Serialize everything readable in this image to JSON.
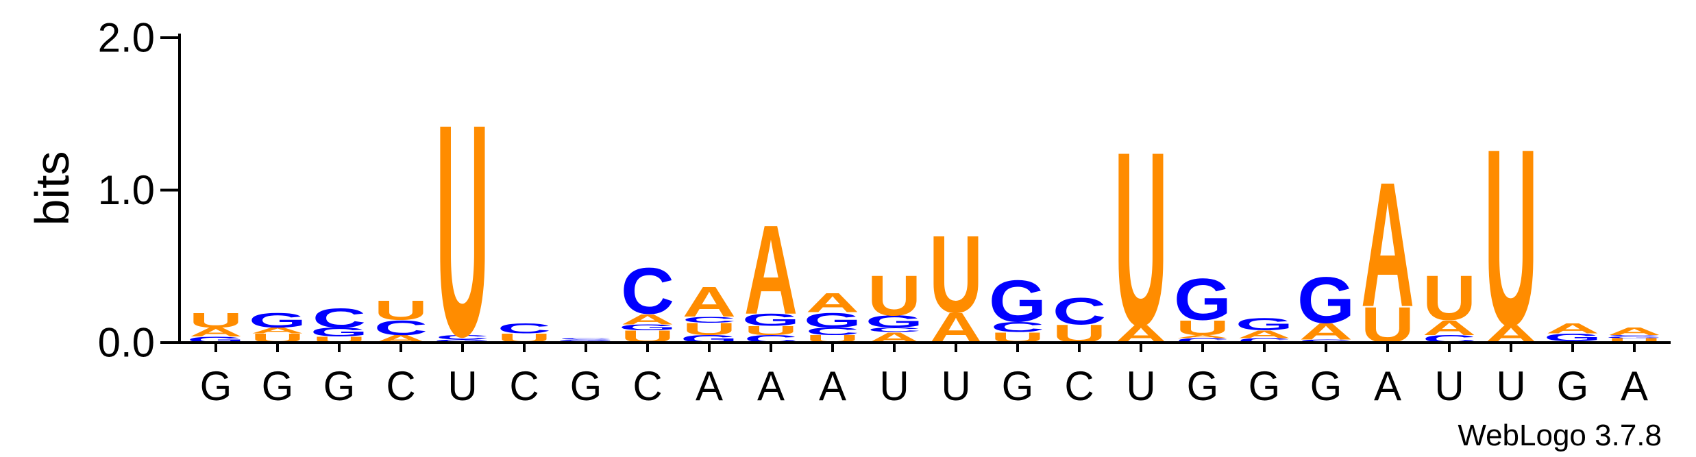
{
  "chart_data": {
    "type": "sequence-logo",
    "ylabel": "bits",
    "ylim": [
      0,
      2.0
    ],
    "yticks": [
      {
        "value": 0.0,
        "label": "0.0"
      },
      {
        "value": 1.0,
        "label": "1.0"
      },
      {
        "value": 2.0,
        "label": "2.0"
      }
    ],
    "credit": "WebLogo 3.7.8",
    "colors": {
      "A": "#ff8c00",
      "U": "#ff8c00",
      "C": "#0000ff",
      "G": "#0000ff"
    },
    "positions": [
      {
        "label": "G",
        "stack": [
          {
            "l": "G",
            "h": 0.04
          },
          {
            "l": "A",
            "h": 0.06
          },
          {
            "l": "U",
            "h": 0.1
          }
        ]
      },
      {
        "label": "G",
        "stack": [
          {
            "l": "U",
            "h": 0.06
          },
          {
            "l": "A",
            "h": 0.04
          },
          {
            "l": "G",
            "h": 0.1
          }
        ]
      },
      {
        "label": "G",
        "stack": [
          {
            "l": "U",
            "h": 0.04
          },
          {
            "l": "G",
            "h": 0.06
          },
          {
            "l": "C",
            "h": 0.13
          }
        ]
      },
      {
        "label": "C",
        "stack": [
          {
            "l": "A",
            "h": 0.05
          },
          {
            "l": "C",
            "h": 0.1
          },
          {
            "l": "U",
            "h": 0.13
          }
        ]
      },
      {
        "label": "U",
        "stack": [
          {
            "l": "G",
            "h": 0.02
          },
          {
            "l": "C",
            "h": 0.03
          },
          {
            "l": "U",
            "h": 1.43
          }
        ]
      },
      {
        "label": "C",
        "stack": [
          {
            "l": "U",
            "h": 0.06
          },
          {
            "l": "C",
            "h": 0.07
          }
        ]
      },
      {
        "label": "G",
        "stack": [
          {
            "l": "A",
            "h": 0.01
          },
          {
            "l": "G",
            "h": 0.01
          },
          {
            "l": "C",
            "h": 0.01
          }
        ]
      },
      {
        "label": "C",
        "stack": [
          {
            "l": "U",
            "h": 0.08
          },
          {
            "l": "G",
            "h": 0.04
          },
          {
            "l": "A",
            "h": 0.07
          },
          {
            "l": "C",
            "h": 0.31
          }
        ]
      },
      {
        "label": "A",
        "stack": [
          {
            "l": "G",
            "h": 0.05
          },
          {
            "l": "U",
            "h": 0.08
          },
          {
            "l": "C",
            "h": 0.04
          },
          {
            "l": "A",
            "h": 0.2
          }
        ]
      },
      {
        "label": "A",
        "stack": [
          {
            "l": "C",
            "h": 0.05
          },
          {
            "l": "U",
            "h": 0.06
          },
          {
            "l": "G",
            "h": 0.08
          },
          {
            "l": "A",
            "h": 0.6
          }
        ]
      },
      {
        "label": "A",
        "stack": [
          {
            "l": "U",
            "h": 0.05
          },
          {
            "l": "C",
            "h": 0.05
          },
          {
            "l": "G",
            "h": 0.1
          },
          {
            "l": "A",
            "h": 0.13
          }
        ]
      },
      {
        "label": "U",
        "stack": [
          {
            "l": "A",
            "h": 0.07
          },
          {
            "l": "C",
            "h": 0.03
          },
          {
            "l": "G",
            "h": 0.08
          },
          {
            "l": "U",
            "h": 0.27
          }
        ]
      },
      {
        "label": "U",
        "stack": [
          {
            "l": "A",
            "h": 0.2
          },
          {
            "l": "U",
            "h": 0.52
          }
        ]
      },
      {
        "label": "G",
        "stack": [
          {
            "l": "U",
            "h": 0.07
          },
          {
            "l": "C",
            "h": 0.07
          },
          {
            "l": "G",
            "h": 0.28
          }
        ]
      },
      {
        "label": "C",
        "stack": [
          {
            "l": "U",
            "h": 0.12
          },
          {
            "l": "C",
            "h": 0.18
          }
        ]
      },
      {
        "label": "U",
        "stack": [
          {
            "l": "A",
            "h": 0.12
          },
          {
            "l": "U",
            "h": 1.17
          }
        ]
      },
      {
        "label": "G",
        "stack": [
          {
            "l": "C",
            "h": 0.03
          },
          {
            "l": "A",
            "h": 0.02
          },
          {
            "l": "U",
            "h": 0.1
          },
          {
            "l": "G",
            "h": 0.28
          }
        ]
      },
      {
        "label": "G",
        "stack": [
          {
            "l": "C",
            "h": 0.03
          },
          {
            "l": "A",
            "h": 0.05
          },
          {
            "l": "G",
            "h": 0.08
          }
        ]
      },
      {
        "label": "G",
        "stack": [
          {
            "l": "C",
            "h": 0.02
          },
          {
            "l": "A",
            "h": 0.11
          },
          {
            "l": "G",
            "h": 0.31
          }
        ]
      },
      {
        "label": "A",
        "stack": [
          {
            "l": "U",
            "h": 0.24
          },
          {
            "l": "A",
            "h": 0.84
          }
        ]
      },
      {
        "label": "U",
        "stack": [
          {
            "l": "C",
            "h": 0.05
          },
          {
            "l": "A",
            "h": 0.1
          },
          {
            "l": "U",
            "h": 0.3
          }
        ]
      },
      {
        "label": "U",
        "stack": [
          {
            "l": "A",
            "h": 0.12
          },
          {
            "l": "U",
            "h": 1.19
          }
        ]
      },
      {
        "label": "G",
        "stack": [
          {
            "l": "C",
            "h": 0.01
          },
          {
            "l": "G",
            "h": 0.05
          },
          {
            "l": "A",
            "h": 0.07
          }
        ]
      },
      {
        "label": "A",
        "stack": [
          {
            "l": "U",
            "h": 0.03
          },
          {
            "l": "G",
            "h": 0.01
          },
          {
            "l": "C",
            "h": 0.01
          },
          {
            "l": "A",
            "h": 0.05
          }
        ]
      }
    ]
  }
}
